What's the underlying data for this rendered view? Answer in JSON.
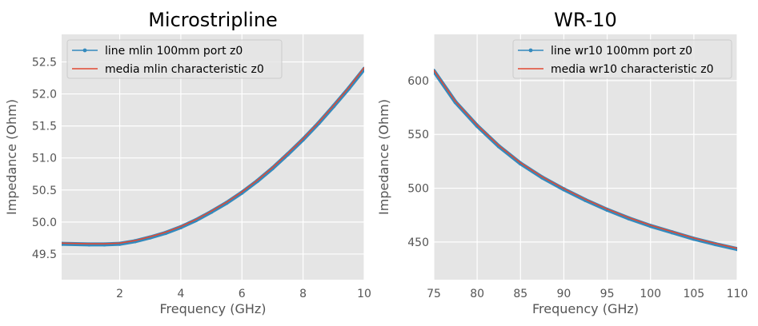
{
  "chart_data": [
    {
      "type": "line",
      "title": "Microstripline",
      "xlabel": "Frequency (GHz)",
      "ylabel": "Impedance (Ohm)",
      "xlim": [
        0.1,
        10
      ],
      "ylim": [
        49.1,
        52.93
      ],
      "xticks": [
        2,
        4,
        6,
        8,
        10
      ],
      "yticks": [
        49.5,
        50.0,
        50.5,
        51.0,
        51.5,
        52.0,
        52.5
      ],
      "ytick_labels": [
        "49.5",
        "50.0",
        "50.5",
        "51.0",
        "51.5",
        "52.0",
        "52.5"
      ],
      "legend_position": "upper-left",
      "grid": true,
      "series": [
        {
          "name": "line mlin 100mm  port z0",
          "color": "#348ABD",
          "marker": "dot",
          "x": [
            0.1,
            1.0,
            1.5,
            2.0,
            2.5,
            3.0,
            3.5,
            4.0,
            4.5,
            5.0,
            5.5,
            6.0,
            6.5,
            7.0,
            7.5,
            8.0,
            8.5,
            9.0,
            9.5,
            10.0
          ],
          "y": [
            49.66,
            49.65,
            49.65,
            49.66,
            49.7,
            49.76,
            49.83,
            49.92,
            50.03,
            50.16,
            50.3,
            50.46,
            50.64,
            50.84,
            51.06,
            51.29,
            51.54,
            51.81,
            52.09,
            52.39
          ]
        },
        {
          "name": "media mlin characteristic z0",
          "color": "#E24A33",
          "marker": "none",
          "x": [
            0.1,
            1.0,
            1.5,
            2.0,
            2.5,
            3.0,
            3.5,
            4.0,
            4.5,
            5.0,
            5.5,
            6.0,
            6.5,
            7.0,
            7.5,
            8.0,
            8.5,
            9.0,
            9.5,
            10.0
          ],
          "y": [
            49.67,
            49.66,
            49.66,
            49.67,
            49.71,
            49.77,
            49.84,
            49.93,
            50.04,
            50.17,
            50.31,
            50.47,
            50.65,
            50.85,
            51.07,
            51.3,
            51.55,
            51.82,
            52.1,
            52.41
          ]
        }
      ]
    },
    {
      "type": "line",
      "title": "WR-10",
      "xlabel": "Frequency (GHz)",
      "ylabel": "Impedance (Ohm)",
      "xlim": [
        75,
        110
      ],
      "ylim": [
        415,
        643
      ],
      "xticks": [
        75,
        80,
        85,
        90,
        95,
        100,
        105,
        110
      ],
      "yticks": [
        450,
        500,
        550,
        600
      ],
      "ytick_labels": [
        "450",
        "500",
        "550",
        "600"
      ],
      "legend_position": "upper-right",
      "grid": true,
      "series": [
        {
          "name": "line wr10 100mm port z0",
          "color": "#348ABD",
          "marker": "dot",
          "x": [
            75,
            77.5,
            80,
            82.5,
            85,
            87.5,
            90,
            92.5,
            95,
            97.5,
            100,
            102.5,
            105,
            107.5,
            110
          ],
          "y": [
            609,
            580,
            558,
            539,
            523,
            510,
            499,
            489,
            480,
            472,
            465,
            459,
            453,
            448,
            443.5
          ]
        },
        {
          "name": "media wr10 characteristic z0",
          "color": "#E24A33",
          "marker": "none",
          "x": [
            75,
            77.5,
            80,
            82.5,
            85,
            87.5,
            90,
            92.5,
            95,
            97.5,
            100,
            102.5,
            105,
            107.5,
            110
          ],
          "y": [
            609.6,
            580.6,
            558.6,
            539.6,
            523.6,
            510.6,
            499.6,
            489.6,
            480.6,
            472.6,
            465.6,
            459.6,
            453.6,
            448.6,
            444.1
          ]
        }
      ]
    }
  ]
}
